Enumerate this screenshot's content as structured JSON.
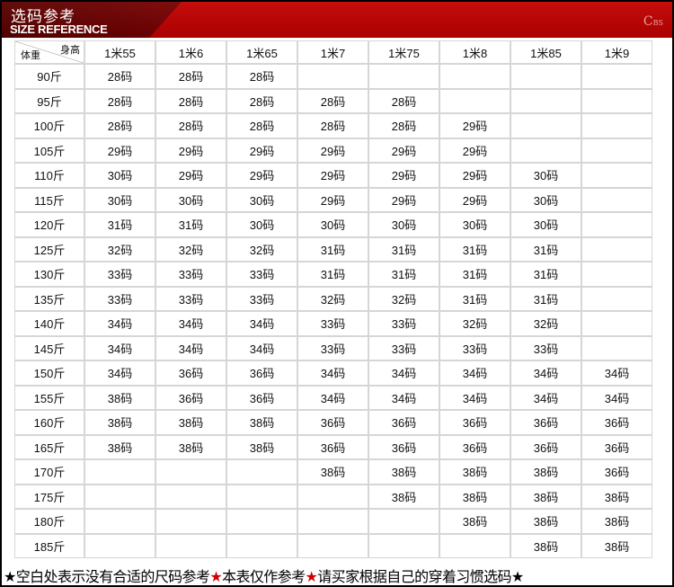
{
  "header": {
    "title_cn": "选码参考",
    "title_en": "SIZE REFERENCE",
    "logo": "CBS"
  },
  "corner": {
    "height_label": "身高",
    "weight_label": "体重"
  },
  "columns": [
    "1米55",
    "1米6",
    "1米65",
    "1米7",
    "1米75",
    "1米8",
    "1米85",
    "1米9"
  ],
  "rows": [
    {
      "weight": "90斤",
      "sizes": [
        "28码",
        "28码",
        "28码",
        "",
        "",
        "",
        "",
        ""
      ]
    },
    {
      "weight": "95斤",
      "sizes": [
        "28码",
        "28码",
        "28码",
        "28码",
        "28码",
        "",
        "",
        ""
      ]
    },
    {
      "weight": "100斤",
      "sizes": [
        "28码",
        "28码",
        "28码",
        "28码",
        "28码",
        "29码",
        "",
        ""
      ]
    },
    {
      "weight": "105斤",
      "sizes": [
        "29码",
        "29码",
        "29码",
        "29码",
        "29码",
        "29码",
        "",
        ""
      ]
    },
    {
      "weight": "110斤",
      "sizes": [
        "30码",
        "29码",
        "29码",
        "29码",
        "29码",
        "29码",
        "30码",
        ""
      ]
    },
    {
      "weight": "115斤",
      "sizes": [
        "30码",
        "30码",
        "30码",
        "29码",
        "29码",
        "29码",
        "30码",
        ""
      ]
    },
    {
      "weight": "120斤",
      "sizes": [
        "31码",
        "31码",
        "30码",
        "30码",
        "30码",
        "30码",
        "30码",
        ""
      ]
    },
    {
      "weight": "125斤",
      "sizes": [
        "32码",
        "32码",
        "32码",
        "31码",
        "31码",
        "31码",
        "31码",
        ""
      ]
    },
    {
      "weight": "130斤",
      "sizes": [
        "33码",
        "33码",
        "33码",
        "31码",
        "31码",
        "31码",
        "31码",
        ""
      ]
    },
    {
      "weight": "135斤",
      "sizes": [
        "33码",
        "33码",
        "33码",
        "32码",
        "32码",
        "31码",
        "31码",
        ""
      ]
    },
    {
      "weight": "140斤",
      "sizes": [
        "34码",
        "34码",
        "34码",
        "33码",
        "33码",
        "32码",
        "32码",
        ""
      ]
    },
    {
      "weight": "145斤",
      "sizes": [
        "34码",
        "34码",
        "34码",
        "33码",
        "33码",
        "33码",
        "33码",
        ""
      ]
    },
    {
      "weight": "150斤",
      "sizes": [
        "34码",
        "36码",
        "36码",
        "34码",
        "34码",
        "34码",
        "34码",
        "34码"
      ]
    },
    {
      "weight": "155斤",
      "sizes": [
        "38码",
        "36码",
        "36码",
        "34码",
        "34码",
        "34码",
        "34码",
        "34码"
      ]
    },
    {
      "weight": "160斤",
      "sizes": [
        "38码",
        "38码",
        "38码",
        "36码",
        "36码",
        "36码",
        "36码",
        "36码"
      ]
    },
    {
      "weight": "165斤",
      "sizes": [
        "38码",
        "38码",
        "38码",
        "36码",
        "36码",
        "36码",
        "36码",
        "36码"
      ]
    },
    {
      "weight": "170斤",
      "sizes": [
        "",
        "",
        "",
        "38码",
        "38码",
        "38码",
        "38码",
        "36码"
      ]
    },
    {
      "weight": "175斤",
      "sizes": [
        "",
        "",
        "",
        "",
        "38码",
        "38码",
        "38码",
        "38码"
      ]
    },
    {
      "weight": "180斤",
      "sizes": [
        "",
        "",
        "",
        "",
        "",
        "38码",
        "38码",
        "38码"
      ]
    },
    {
      "weight": "185斤",
      "sizes": [
        "",
        "",
        "",
        "",
        "",
        "",
        "38码",
        "38码"
      ]
    }
  ],
  "footer": {
    "star": "★",
    "note1": "空白处表示没有合适的尺码参考",
    "note2": "本表仅作参考",
    "note3": "请买家根据自己的穿着习惯选码"
  },
  "colors": {
    "banner": "#c20000",
    "banner_dark": "#6a0000",
    "star_accent": "#d00000"
  }
}
